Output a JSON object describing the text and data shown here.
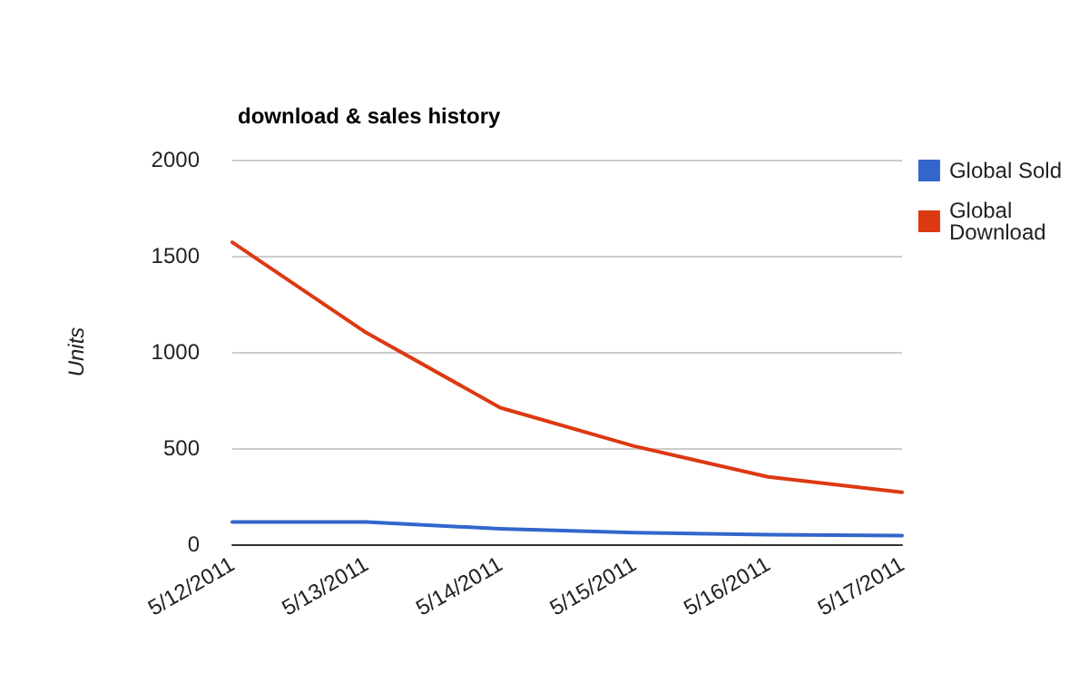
{
  "chart_data": {
    "type": "line",
    "title": "download & sales history",
    "ylabel": "Units",
    "categories": [
      "5/12/2011",
      "5/13/2011",
      "5/14/2011",
      "5/15/2011",
      "5/16/2011",
      "5/17/2011"
    ],
    "series": [
      {
        "name": "Global Sold",
        "color": "#3366cc",
        "values": [
          115,
          115,
          80,
          60,
          50,
          45
        ]
      },
      {
        "name": "Global Download",
        "color": "#dc3912",
        "values": [
          1570,
          1100,
          710,
          510,
          350,
          270
        ]
      }
    ],
    "ylim": [
      0,
      2000
    ],
    "yticks": [
      0,
      500,
      1000,
      1500,
      2000
    ],
    "grid": "y",
    "legend": "top right",
    "marker": "none"
  }
}
